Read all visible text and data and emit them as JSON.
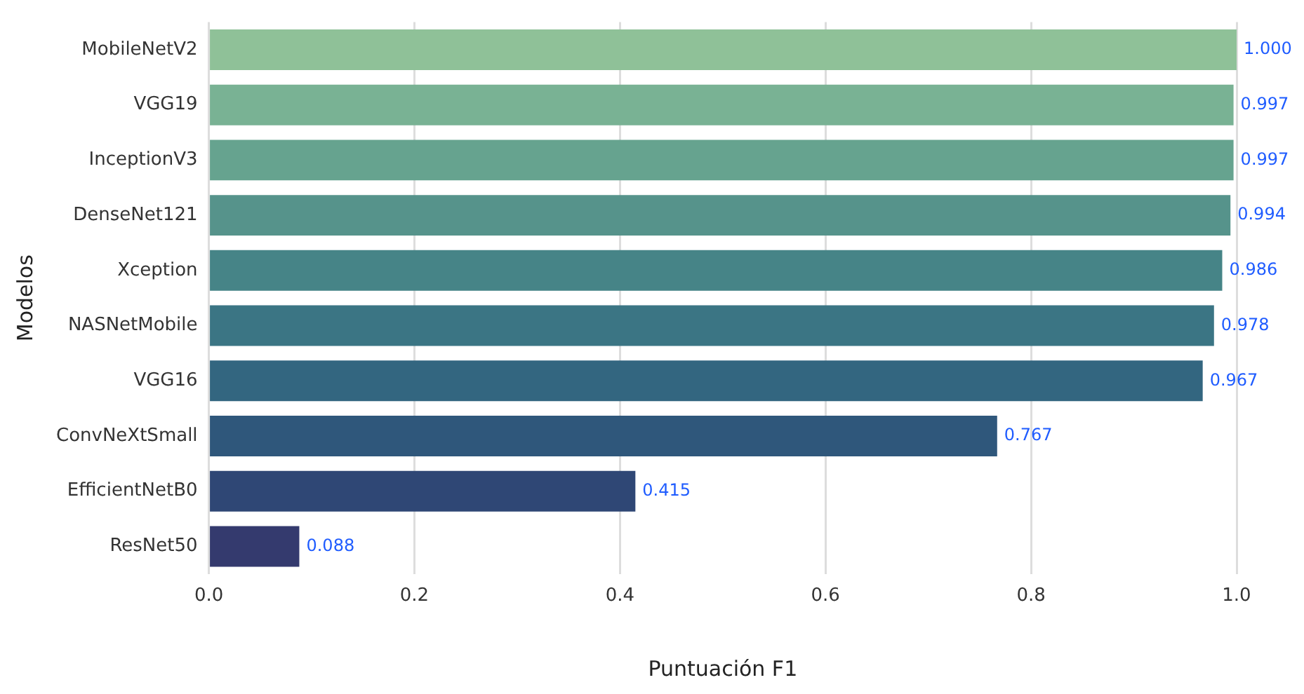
{
  "chart_data": {
    "type": "bar",
    "orientation": "horizontal",
    "xlabel": "Puntuación F1",
    "ylabel": "Modelos",
    "categories": [
      "MobileNetV2",
      "VGG19",
      "InceptionV3",
      "DenseNet121",
      "Xception",
      "NASNetMobile",
      "VGG16",
      "ConvNeXtSmall",
      "EfficientNetB0",
      "ResNet50"
    ],
    "values": [
      1.0,
      0.997,
      0.997,
      0.994,
      0.986,
      0.978,
      0.967,
      0.767,
      0.415,
      0.088
    ],
    "colors": [
      "#8fc198",
      "#79b294",
      "#66a38f",
      "#56938b",
      "#468487",
      "#3b7584",
      "#336680",
      "#2f577b",
      "#2f4775",
      "#343a6e"
    ],
    "value_labels": [
      "1.000",
      "0.997",
      "0.997",
      "0.994",
      "0.986",
      "0.978",
      "0.967",
      "0.767",
      "0.415",
      "0.088"
    ],
    "xlim": [
      0,
      1.0
    ],
    "xticks": [
      {
        "value": 0,
        "label": "0.0"
      },
      {
        "value": 0.2,
        "label": "0.2"
      },
      {
        "value": 0.4,
        "label": "0.4"
      },
      {
        "value": 0.6,
        "label": "0.6"
      },
      {
        "value": 0.8,
        "label": "0.8"
      },
      {
        "value": 1.0,
        "label": "1.0"
      }
    ],
    "grid": "x",
    "legend": false
  }
}
